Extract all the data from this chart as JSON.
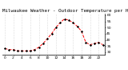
{
  "title": "Milwaukee Weather - Outdoor Temperature per Hour (Last 24 Hours)",
  "x_values": [
    0,
    1,
    2,
    3,
    4,
    5,
    6,
    7,
    8,
    9,
    10,
    11,
    12,
    13,
    14,
    15,
    16,
    17,
    18,
    19,
    20,
    21,
    22,
    23
  ],
  "y_values": [
    33,
    32,
    32,
    31,
    31,
    31,
    31,
    32,
    34,
    37,
    41,
    45,
    50,
    54,
    57,
    56,
    54,
    51,
    47,
    38,
    36,
    37,
    38,
    36
  ],
  "line_color": "#ff0000",
  "marker_color": "#000000",
  "marker": "D",
  "linestyle": "--",
  "ylim": [
    28,
    61
  ],
  "xlim": [
    -0.5,
    23.5
  ],
  "yticks": [
    30,
    35,
    40,
    45,
    50,
    55,
    60
  ],
  "ytick_labels": [
    "30",
    "35",
    "40",
    "45",
    "50",
    "55",
    "60"
  ],
  "xtick_positions": [
    0,
    2,
    4,
    6,
    8,
    10,
    12,
    14,
    16,
    18,
    20,
    22
  ],
  "xtick_labels": [
    "0",
    "2",
    "4",
    "6",
    "8",
    "10",
    "12",
    "14",
    "16",
    "18",
    "20",
    "22"
  ],
  "grid_color": "#bbbbbb",
  "bg_color": "#ffffff",
  "title_fontsize": 4.2,
  "tick_fontsize": 3.2,
  "linewidth": 0.7,
  "markersize": 1.2
}
